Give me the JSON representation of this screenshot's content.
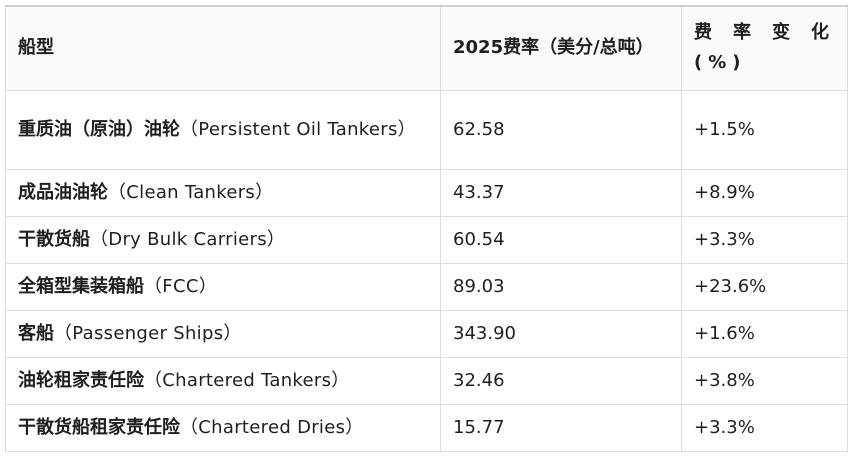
{
  "table": {
    "header": [
      "船型",
      "2025费率（美分/总吨）",
      "费率变化(%)"
    ],
    "rows": [
      {
        "name": "重质油（原油）油轮",
        "english": "（Persistent Oil Tankers）",
        "rate": "62.58",
        "change": "+1.5%"
      },
      {
        "name": "成品油油轮",
        "english": "（Clean Tankers）",
        "rate": "43.37",
        "change": "+8.9%"
      },
      {
        "name": "干散货船",
        "english": "（Dry Bulk Carriers）",
        "rate": "60.54",
        "change": "+3.3%"
      },
      {
        "name": "全箱型集装箱船",
        "english": "（FCC）",
        "rate": "89.03",
        "change": "+23.6%"
      },
      {
        "name": "客船",
        "english": "（Passenger Ships）",
        "rate": "343.90",
        "change": "+1.6%"
      },
      {
        "name": "油轮租家责任险",
        "english": "（Chartered Tankers）",
        "rate": "32.46",
        "change": "+3.8%"
      },
      {
        "name": "干散货船租家责任险",
        "english": "（Chartered Dries）",
        "rate": "15.77",
        "change": "+3.3%"
      }
    ]
  }
}
